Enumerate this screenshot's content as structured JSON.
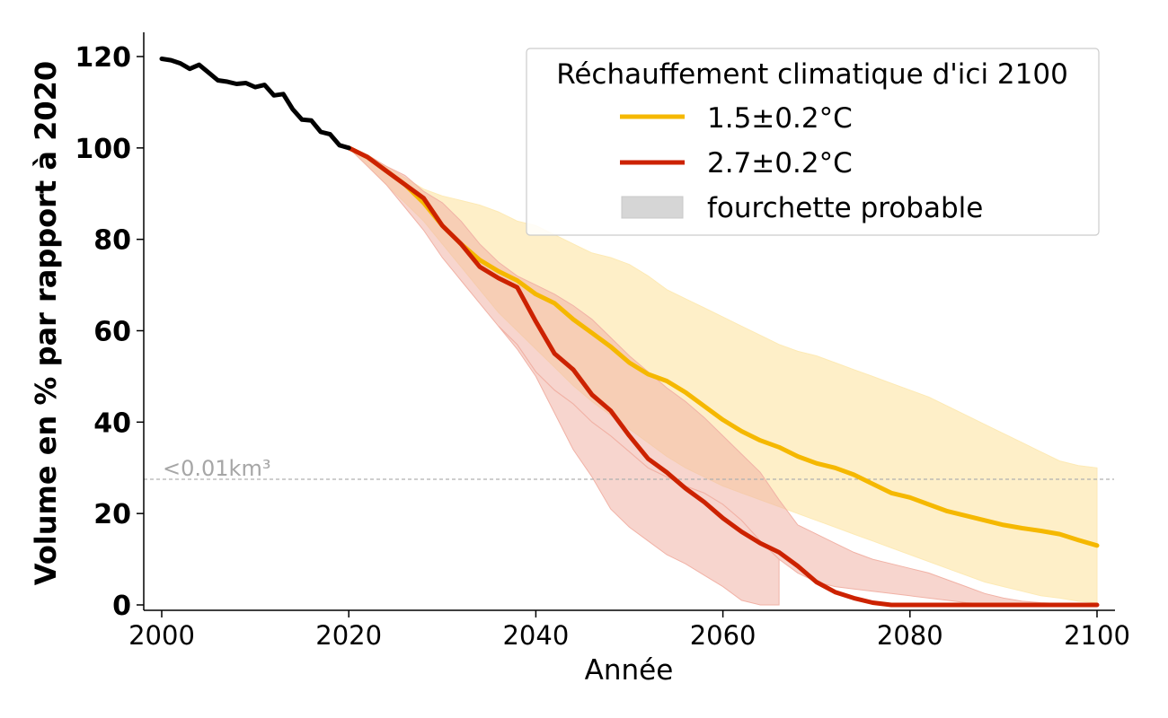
{
  "chart_data": {
    "type": "line",
    "title": "",
    "xlabel": "Année",
    "ylabel": "Volume en % par rapport à 2020",
    "xlim": [
      2000,
      2100
    ],
    "ylim": [
      0,
      120
    ],
    "xticks": [
      2000,
      2020,
      2040,
      2060,
      2080,
      2100
    ],
    "yticks": [
      0,
      20,
      40,
      60,
      80,
      100,
      120
    ],
    "grid": false,
    "legend": {
      "title": "Réchauffement climatique d'ici 2100",
      "placement": "top-right",
      "range_label": "fourchette probable",
      "range_color": "#d6d6d6"
    },
    "threshold": {
      "y": 27.5,
      "label": "<0.01km³",
      "color": "#b0b0b0"
    },
    "historical": {
      "color": "#000000",
      "x": [
        2000,
        2001,
        2002,
        2003,
        2004,
        2005,
        2006,
        2007,
        2008,
        2009,
        2010,
        2011,
        2012,
        2013,
        2014,
        2015,
        2016,
        2017,
        2018,
        2019,
        2020
      ],
      "y": [
        119.5,
        119.2,
        118.5,
        117.3,
        118.2,
        116.5,
        114.8,
        114.5,
        114.0,
        114.2,
        113.3,
        113.8,
        111.5,
        111.8,
        108.5,
        106.2,
        106.0,
        103.5,
        103.0,
        100.6,
        100.0
      ]
    },
    "series": [
      {
        "name": "1.5±0.2°C",
        "color": "#f5b800",
        "band_color": "#fdeab5",
        "x": [
          2020,
          2022,
          2024,
          2026,
          2028,
          2030,
          2032,
          2034,
          2036,
          2038,
          2040,
          2042,
          2044,
          2046,
          2048,
          2050,
          2052,
          2054,
          2056,
          2058,
          2060,
          2062,
          2064,
          2066,
          2068,
          2070,
          2072,
          2074,
          2076,
          2078,
          2080,
          2082,
          2084,
          2086,
          2088,
          2090,
          2092,
          2094,
          2096,
          2098,
          2100
        ],
        "y": [
          100,
          98,
          95,
          92,
          88,
          83,
          79,
          75.5,
          73,
          71,
          68,
          66,
          62.5,
          59.5,
          56.5,
          53,
          50.5,
          49,
          46.5,
          43.5,
          40.5,
          38,
          36,
          34.5,
          32.5,
          31,
          30,
          28.5,
          26.5,
          24.5,
          23.5,
          22,
          20.5,
          19.5,
          18.5,
          17.5,
          16.8,
          16.2,
          15.5,
          14.2,
          13.0
        ],
        "upper": [
          100,
          98,
          96,
          93.5,
          91,
          89.5,
          88.5,
          87.5,
          86,
          84,
          83,
          81,
          79,
          77,
          76,
          74.5,
          72,
          69,
          67,
          65,
          63,
          61,
          59,
          57,
          55.5,
          54.5,
          53,
          51.5,
          50,
          48.5,
          47,
          45.5,
          43.5,
          41.5,
          39.5,
          37.5,
          35.5,
          33.5,
          31.5,
          30.5,
          30
        ],
        "lower": [
          100,
          96,
          92,
          88,
          84,
          79,
          74,
          69,
          64,
          60,
          56,
          52,
          48,
          44.5,
          41.5,
          38.5,
          35.5,
          32.5,
          30,
          28,
          26,
          24.5,
          23,
          21.5,
          20,
          18.5,
          17,
          15.5,
          14,
          12.5,
          11,
          9.5,
          8,
          6.5,
          5,
          4,
          3,
          2,
          1.5,
          0.8,
          0.5
        ]
      },
      {
        "name": "2.7±0.2°C",
        "color": "#cc2200",
        "band_color": "#f1b2a6",
        "x": [
          2020,
          2022,
          2024,
          2026,
          2028,
          2030,
          2032,
          2034,
          2036,
          2038,
          2040,
          2042,
          2044,
          2046,
          2048,
          2050,
          2052,
          2054,
          2056,
          2058,
          2060,
          2062,
          2064,
          2066,
          2068,
          2070,
          2072,
          2074,
          2076,
          2078,
          2080,
          2082,
          2084,
          2086,
          2088,
          2090,
          2092,
          2094,
          2096,
          2098,
          2100
        ],
        "y": [
          100,
          98,
          95,
          92,
          89,
          83,
          79,
          74,
          71.5,
          69.5,
          62,
          55,
          51.5,
          46,
          42.5,
          37,
          32,
          29,
          25.5,
          22.5,
          19,
          16,
          13.5,
          11.5,
          8.5,
          5,
          2.8,
          1.5,
          0.5,
          0,
          0,
          0,
          0,
          0,
          0,
          0,
          0,
          0,
          0,
          0,
          0
        ],
        "upper": [
          100,
          98.5,
          96,
          94,
          90.5,
          88,
          84,
          79,
          75,
          72,
          70,
          68,
          65.5,
          62.5,
          58.5,
          54.5,
          51,
          47.5,
          44.5,
          41,
          37,
          33,
          29,
          23,
          17.5,
          15.5,
          13.5,
          11.5,
          10,
          9,
          8,
          7,
          5.5,
          4,
          2.5,
          1.5,
          0.8,
          0.5,
          0.3,
          0.2,
          0.1
        ],
        "lower": [
          100,
          96,
          92,
          87,
          82,
          76,
          71,
          66,
          61,
          57,
          51,
          47,
          44,
          40,
          37,
          33.5,
          30,
          28,
          26,
          24.5,
          22,
          18.5,
          14,
          10,
          7,
          5,
          4,
          3.5,
          3,
          2.5,
          2,
          1.5,
          1,
          0.5,
          0.2,
          0,
          0,
          0,
          0,
          0,
          0
        ]
      },
      {
        "name": "2.7±0.2°C lower band",
        "color": "#cc2200",
        "band_color": "#f1b2a6",
        "x": [
          2036,
          2038,
          2040,
          2042,
          2044,
          2046,
          2048,
          2050,
          2052,
          2054,
          2056,
          2058,
          2060,
          2062,
          2064,
          2066
        ],
        "upper": [
          61,
          57,
          51,
          47,
          44,
          40,
          37,
          33.5,
          30,
          28,
          26,
          24.5,
          22,
          18.5,
          14,
          10
        ],
        "lower": [
          61,
          56,
          50,
          42,
          34,
          28,
          21,
          17,
          14,
          11,
          9,
          6.5,
          4,
          1,
          0,
          0
        ]
      }
    ]
  }
}
